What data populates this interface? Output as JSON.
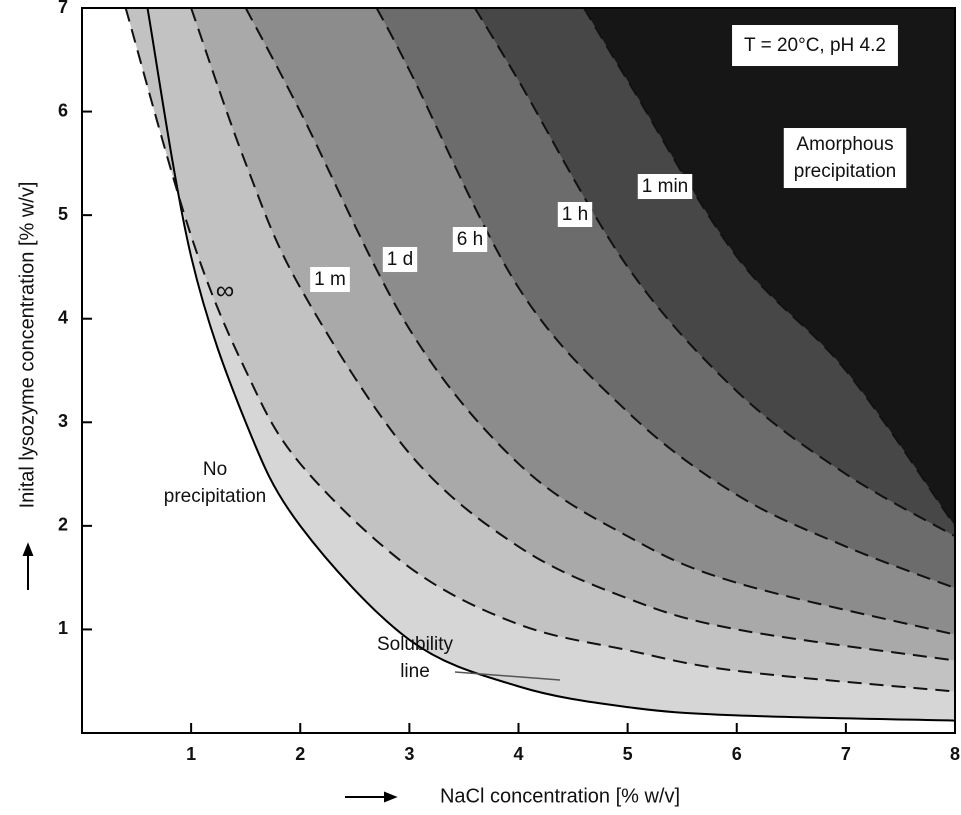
{
  "chart_data": {
    "type": "phase-diagram",
    "x_label": "NaCl concentration [% w/v]",
    "y_label": "Inital lysozyme concentration [% w/v]",
    "xlim": [
      0,
      8
    ],
    "ylim": [
      0,
      7
    ],
    "xticks": [
      1,
      2,
      3,
      4,
      5,
      6,
      7,
      8
    ],
    "yticks": [
      1,
      2,
      3,
      4,
      5,
      6,
      7
    ],
    "series": [
      {
        "style": "solid",
        "color": "#d6d6d6",
        "x": [
          0.6,
          1,
          1.5,
          2,
          3,
          4,
          5,
          6,
          8
        ],
        "values": [
          7,
          4.6,
          3.0,
          2.0,
          0.9,
          0.45,
          0.25,
          0.17,
          0.12
        ]
      },
      {
        "name": "∞",
        "style": "dashed",
        "color": "#c2c2c2",
        "x": [
          0.4,
          1,
          1.5,
          2,
          3,
          4,
          5,
          6,
          8
        ],
        "values": [
          7,
          4.8,
          3.5,
          2.6,
          1.6,
          1.05,
          0.8,
          0.6,
          0.4
        ]
      },
      {
        "name": "1 m",
        "style": "dashed",
        "color": "#a9a9a9",
        "x": [
          1,
          1.5,
          2,
          3,
          4,
          5,
          6,
          8
        ],
        "values": [
          7,
          5.5,
          4.3,
          2.7,
          1.8,
          1.3,
          1.0,
          0.7
        ]
      },
      {
        "name": "1 d",
        "style": "dashed",
        "color": "#8c8c8c",
        "x": [
          1.5,
          2,
          3,
          4,
          5,
          6,
          8
        ],
        "values": [
          7,
          6.0,
          3.9,
          2.6,
          1.9,
          1.45,
          0.95
        ]
      },
      {
        "name": "6 h",
        "style": "dashed",
        "color": "#6c6c6c",
        "x": [
          2.7,
          3,
          4,
          5,
          6,
          7,
          8
        ],
        "values": [
          7,
          6.4,
          4.3,
          3.1,
          2.3,
          1.8,
          1.4
        ]
      },
      {
        "name": "1 h",
        "style": "dashed",
        "color": "#474747",
        "x": [
          3.6,
          4,
          5,
          6,
          7,
          8
        ],
        "values": [
          7,
          6.3,
          4.5,
          3.3,
          2.5,
          1.9
        ]
      },
      {
        "name": "1 min",
        "style": "dashed",
        "color": "#161616",
        "x": [
          4.6,
          5,
          6,
          7,
          8
        ],
        "values": [
          7,
          6.3,
          4.6,
          3.5,
          2.0
        ]
      }
    ],
    "annotations": {
      "conditions": "T = 20°C, pH 4.2",
      "amorphous": [
        "Amorphous",
        "precipitation"
      ],
      "no_precipitation": [
        "No",
        "precipitation"
      ],
      "solubility": [
        "Solubility",
        "line"
      ]
    }
  }
}
